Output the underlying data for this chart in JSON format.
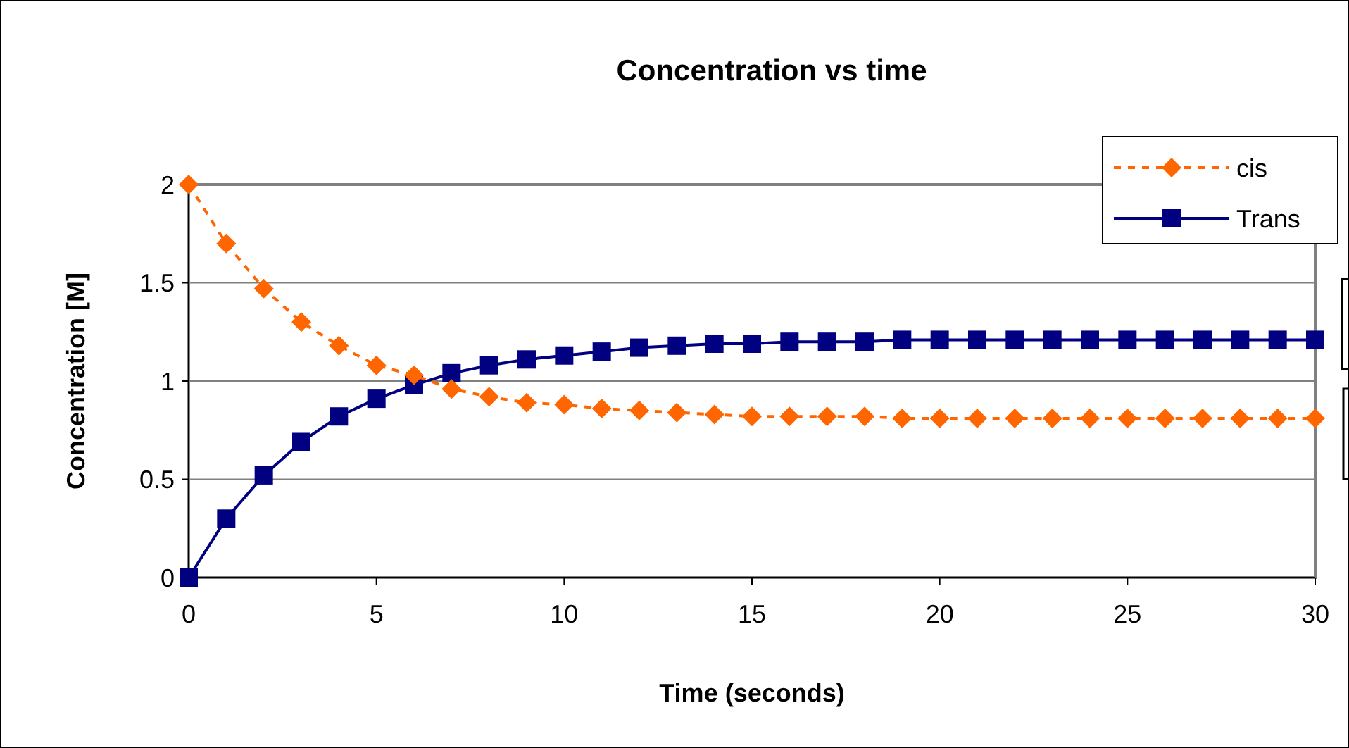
{
  "chart_data": {
    "type": "line",
    "title": "Concentration vs time",
    "xlabel": "Time (seconds)",
    "ylabel": "Concentration [M]",
    "x": [
      0,
      1,
      2,
      3,
      4,
      5,
      6,
      7,
      8,
      9,
      10,
      11,
      12,
      13,
      14,
      15,
      16,
      17,
      18,
      19,
      20,
      21,
      22,
      23,
      24,
      25,
      26,
      27,
      28,
      29,
      30
    ],
    "series": [
      {
        "name": "cis",
        "color": "#ff6600",
        "marker": "diamond",
        "line_style": "dashed",
        "values": [
          2,
          1.7,
          1.47,
          1.3,
          1.18,
          1.08,
          1.03,
          0.96,
          0.92,
          0.89,
          0.88,
          0.86,
          0.85,
          0.84,
          0.83,
          0.82,
          0.82,
          0.82,
          0.82,
          0.81,
          0.81,
          0.81,
          0.81,
          0.81,
          0.81,
          0.81,
          0.81,
          0.81,
          0.81,
          0.81,
          0.81
        ]
      },
      {
        "name": "Trans",
        "color": "#000080",
        "marker": "square",
        "line_style": "solid",
        "values": [
          0,
          0.3,
          0.52,
          0.69,
          0.82,
          0.91,
          0.98,
          1.04,
          1.08,
          1.11,
          1.13,
          1.15,
          1.17,
          1.18,
          1.19,
          1.19,
          1.2,
          1.2,
          1.2,
          1.21,
          1.21,
          1.21,
          1.21,
          1.21,
          1.21,
          1.21,
          1.21,
          1.21,
          1.21,
          1.21,
          1.21
        ]
      }
    ],
    "xlim": [
      0,
      30
    ],
    "xticks": [
      0,
      5,
      10,
      15,
      20,
      25,
      30
    ],
    "ylim": [
      0,
      2
    ],
    "yticks": [
      0,
      0.5,
      1,
      1.5,
      2
    ],
    "grid": "y",
    "legend": "top right"
  }
}
